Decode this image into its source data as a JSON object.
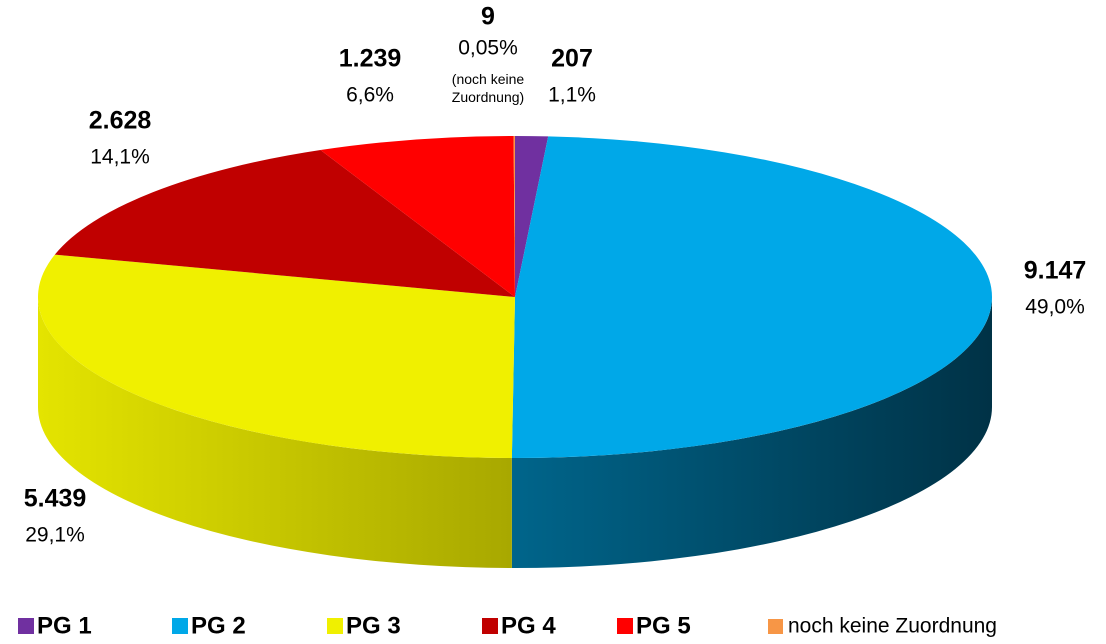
{
  "chart_data": {
    "type": "pie3d",
    "categories": [
      "PG 1",
      "PG 2",
      "PG 3",
      "PG 4",
      "PG 5",
      "noch keine Zuordnung"
    ],
    "values": [
      207,
      9147,
      5439,
      2628,
      1239,
      9
    ],
    "value_labels": [
      "207",
      "9.147",
      "5.439",
      "2.628",
      "1.239",
      "9"
    ],
    "percents": [
      1.1,
      49.0,
      29.1,
      14.1,
      6.6,
      0.05
    ],
    "percent_labels": [
      "1,1%",
      "49,0%",
      "29,1%",
      "14,1%",
      "6,6%",
      "0,05%"
    ],
    "colors": [
      "#7030a0",
      "#00a8e8",
      "#f0f000",
      "#c00000",
      "#ff0000",
      "#f79646"
    ],
    "annotation": "(noch keine Zuordnung)",
    "legend": "bottom"
  }
}
